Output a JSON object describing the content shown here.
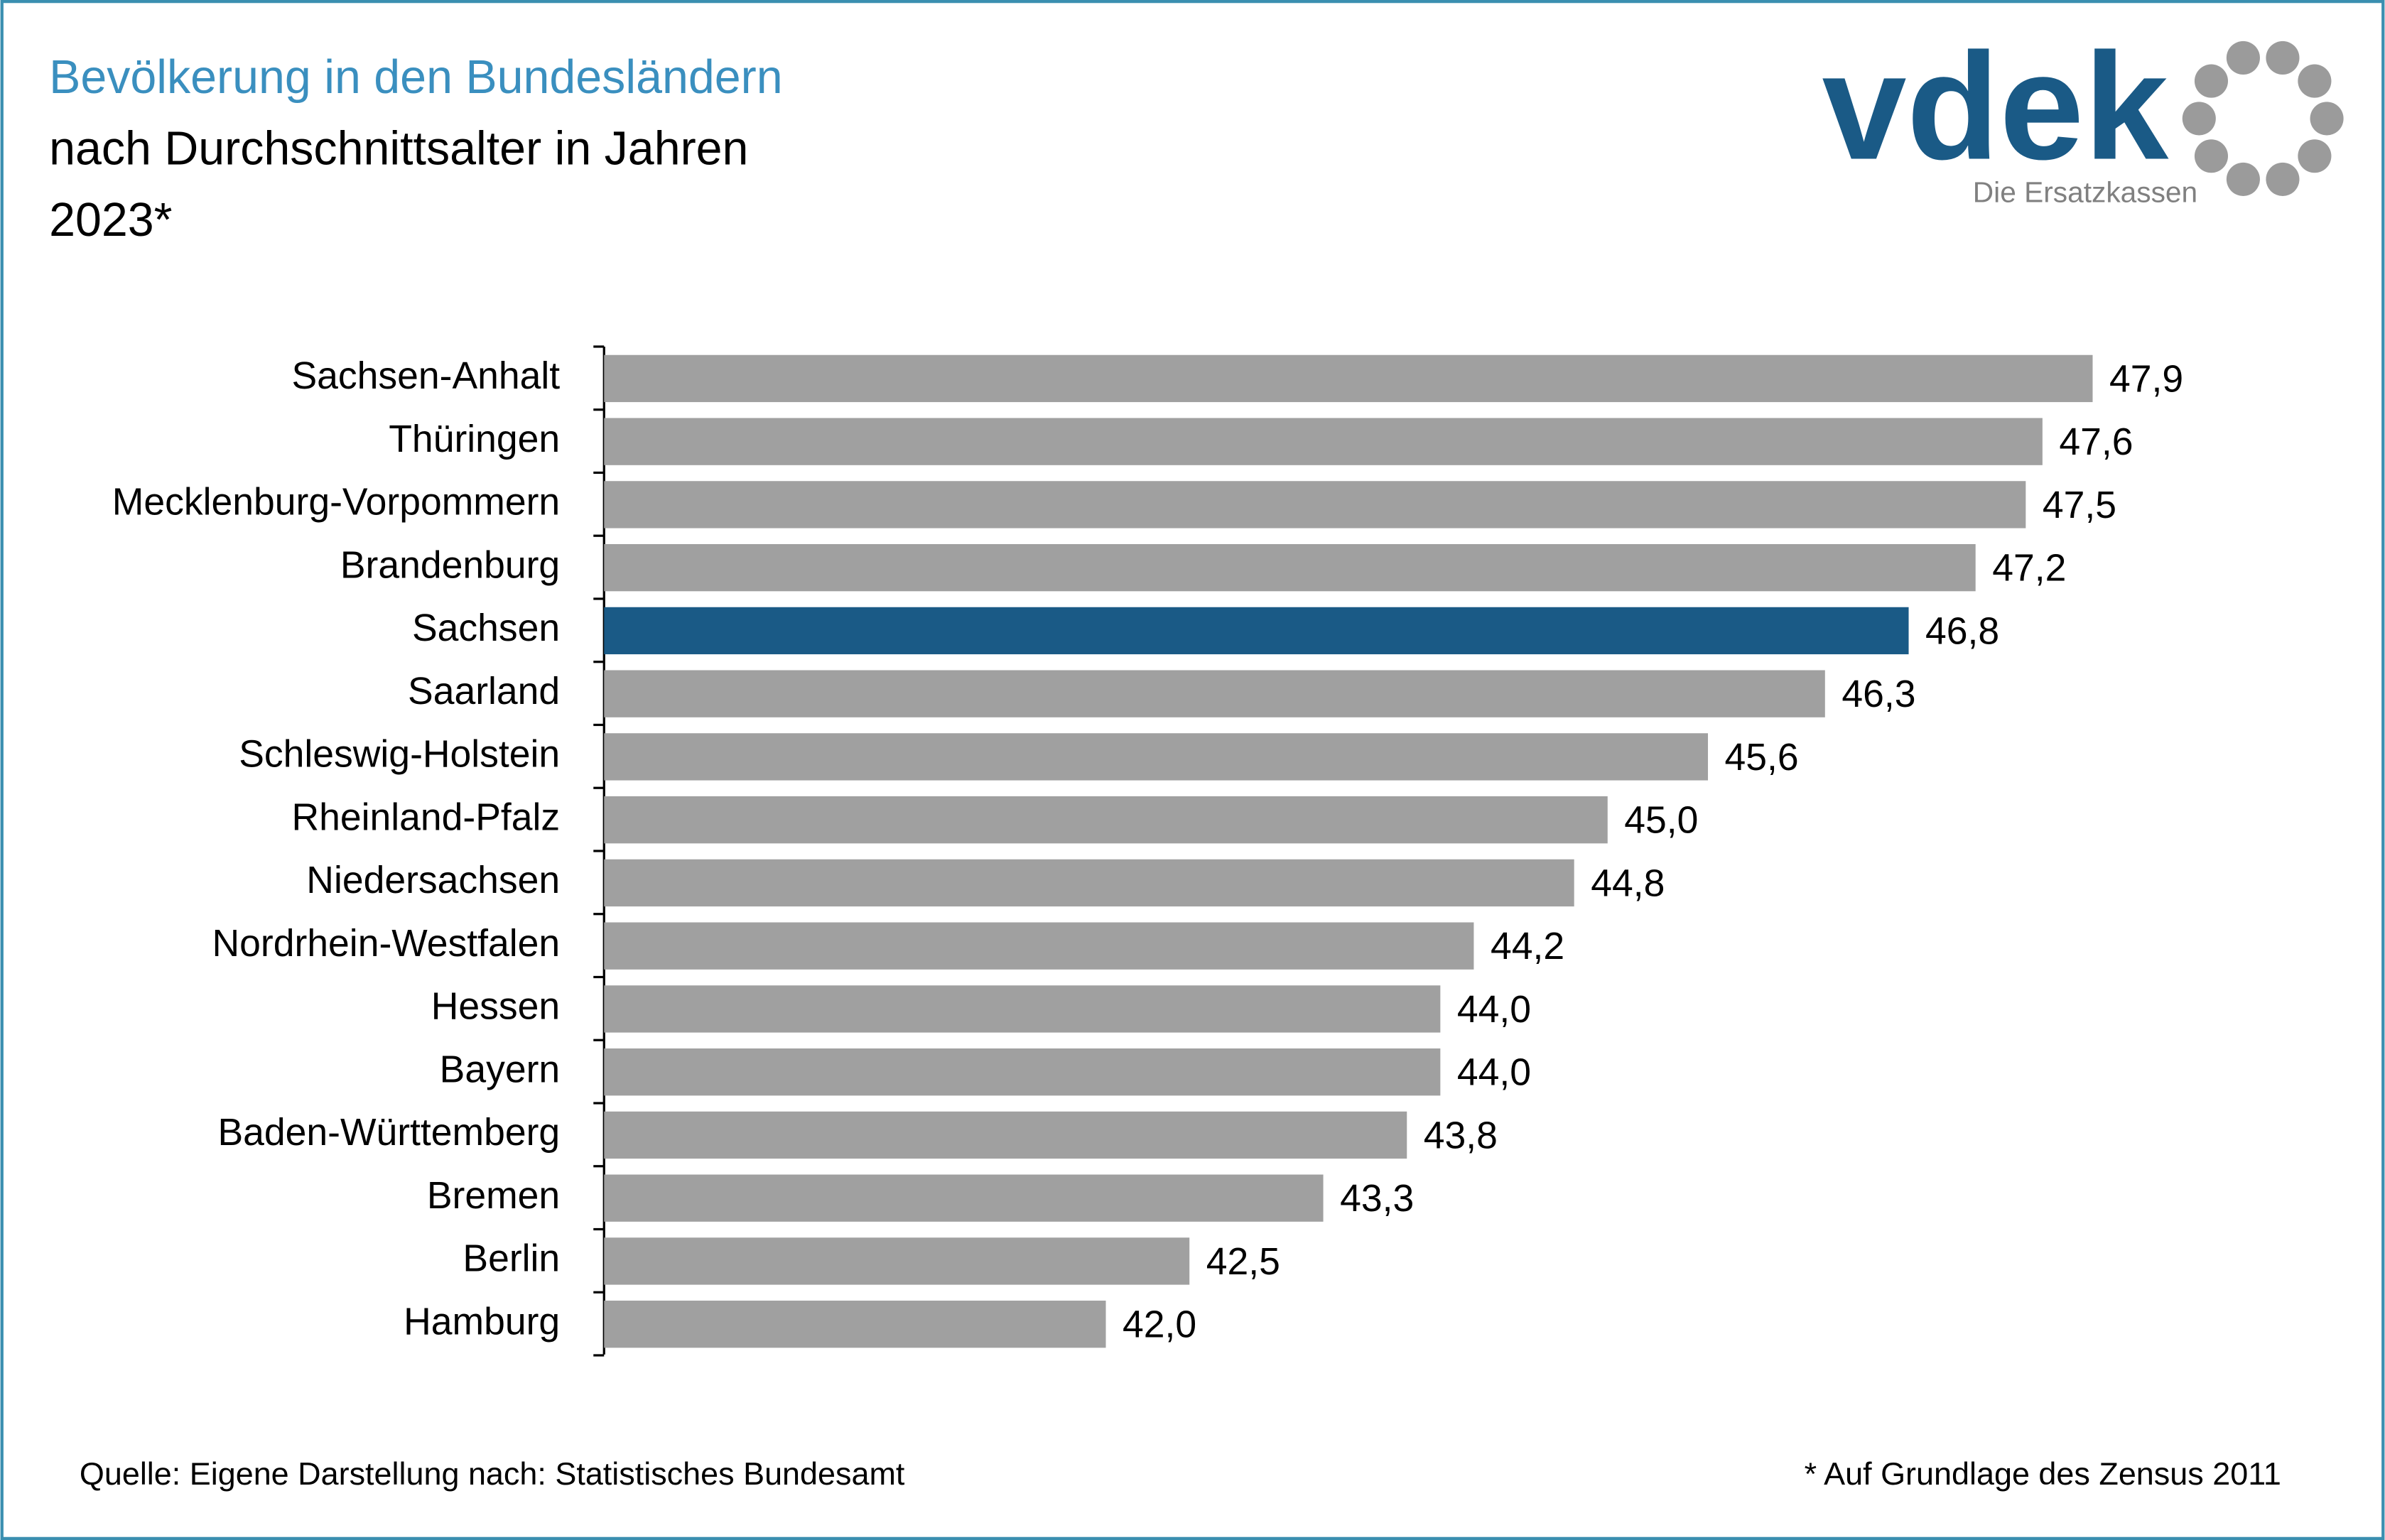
{
  "chart_data": {
    "type": "hbar",
    "title": "Bevölkerung in den Bundesländern",
    "subtitle": [
      "nach Durchschnittsalter in Jahren",
      "2023*"
    ],
    "categories": [
      "Sachsen-Anhalt",
      "Thüringen",
      "Mecklenburg-Vorpommern",
      "Brandenburg",
      "Sachsen",
      "Saarland",
      "Schleswig-Holstein",
      "Rheinland-Pfalz",
      "Niedersachsen",
      "Nordrhein-Westfalen",
      "Hessen",
      "Bayern",
      "Baden-Württemberg",
      "Bremen",
      "Berlin",
      "Hamburg"
    ],
    "values": [
      47.9,
      47.6,
      47.5,
      47.2,
      46.8,
      46.3,
      45.6,
      45.0,
      44.8,
      44.2,
      44.0,
      44.0,
      43.8,
      43.3,
      42.5,
      42.0
    ],
    "value_labels": [
      "47,9",
      "47,6",
      "47,5",
      "47,2",
      "46,8",
      "46,3",
      "45,6",
      "45,0",
      "44,8",
      "44,2",
      "44,0",
      "44,0",
      "43,8",
      "43,3",
      "42,5",
      "42,0"
    ],
    "colors": [
      "#a0a0a0",
      "#a0a0a0",
      "#a0a0a0",
      "#a0a0a0",
      "#1a5a86",
      "#a0a0a0",
      "#a0a0a0",
      "#a0a0a0",
      "#a0a0a0",
      "#a0a0a0",
      "#a0a0a0",
      "#a0a0a0",
      "#a0a0a0",
      "#a0a0a0",
      "#a0a0a0",
      "#a0a0a0"
    ],
    "xlim": [
      39,
      48.5
    ],
    "source": "Quelle: Eigene Darstellung nach: Statistisches Bundesamt",
    "note": "* Auf Grundlage des Zensus 2011"
  },
  "logo": {
    "name": "vdek",
    "tagline": "Die Ersatzkassen"
  }
}
